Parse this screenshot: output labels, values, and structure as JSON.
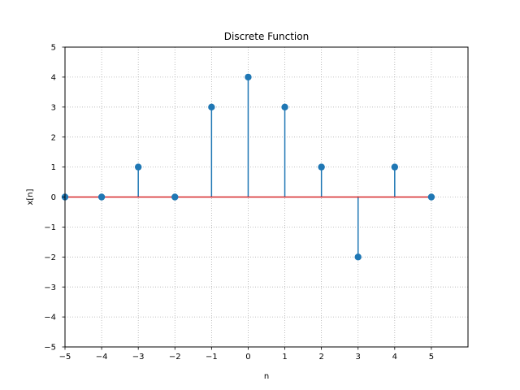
{
  "chart_data": {
    "type": "stem",
    "title": "Discrete Function",
    "xlabel": "n",
    "ylabel": "x[n]",
    "x": [
      -5,
      -4,
      -3,
      -2,
      -1,
      0,
      1,
      2,
      3,
      4,
      5
    ],
    "y": [
      0,
      0,
      1,
      0,
      3,
      4,
      3,
      1,
      -2,
      1,
      0
    ],
    "xlim": [
      -5,
      6
    ],
    "ylim": [
      -5,
      5
    ],
    "xticks": [
      -5,
      -4,
      -3,
      -2,
      -1,
      0,
      1,
      2,
      3,
      4,
      5
    ],
    "yticks": [
      -5,
      -4,
      -3,
      -2,
      -1,
      0,
      1,
      2,
      3,
      4,
      5
    ],
    "grid": true,
    "grid_style": "dotted",
    "baseline": 0,
    "colors": {
      "stem": "#1f77b4",
      "marker": "#1f77b4",
      "baseline": "#d62728",
      "grid": "#b0b0b0",
      "axes": "#000000"
    }
  }
}
